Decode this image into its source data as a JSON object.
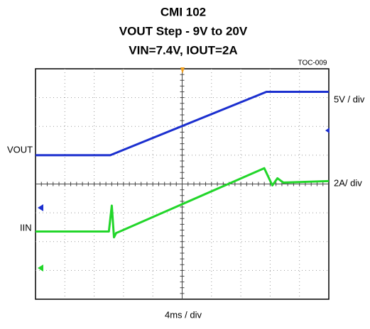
{
  "chart_data": {
    "type": "line",
    "title": [
      "CMI 102",
      "VOUT Step - 9V to 20V",
      "VIN=7.4V, IOUT=2A"
    ],
    "annotation": "TOC-009",
    "xlabel": "4ms / div",
    "xlim": [
      0,
      40
    ],
    "series": [
      {
        "name": "VOUT",
        "scale_label": "5V / div",
        "color": "#1b2fcf",
        "ylim": [
          -16,
          24
        ],
        "x": [
          0,
          10.2,
          31.5,
          40
        ],
        "values": [
          9,
          9,
          20,
          20
        ]
      },
      {
        "name": "IIN",
        "scale_label": "2A/ div",
        "color": "#22d62a",
        "ylim": [
          -2.2,
          13.8
        ],
        "x": [
          0,
          10.0,
          10.4,
          10.7,
          11.0,
          11.5,
          31.2,
          32.3,
          33.0,
          33.8,
          40
        ],
        "values": [
          2.5,
          2.5,
          4.3,
          2.1,
          2.4,
          2.5,
          6.9,
          5.7,
          6.2,
          5.9,
          6.0
        ]
      }
    ]
  }
}
